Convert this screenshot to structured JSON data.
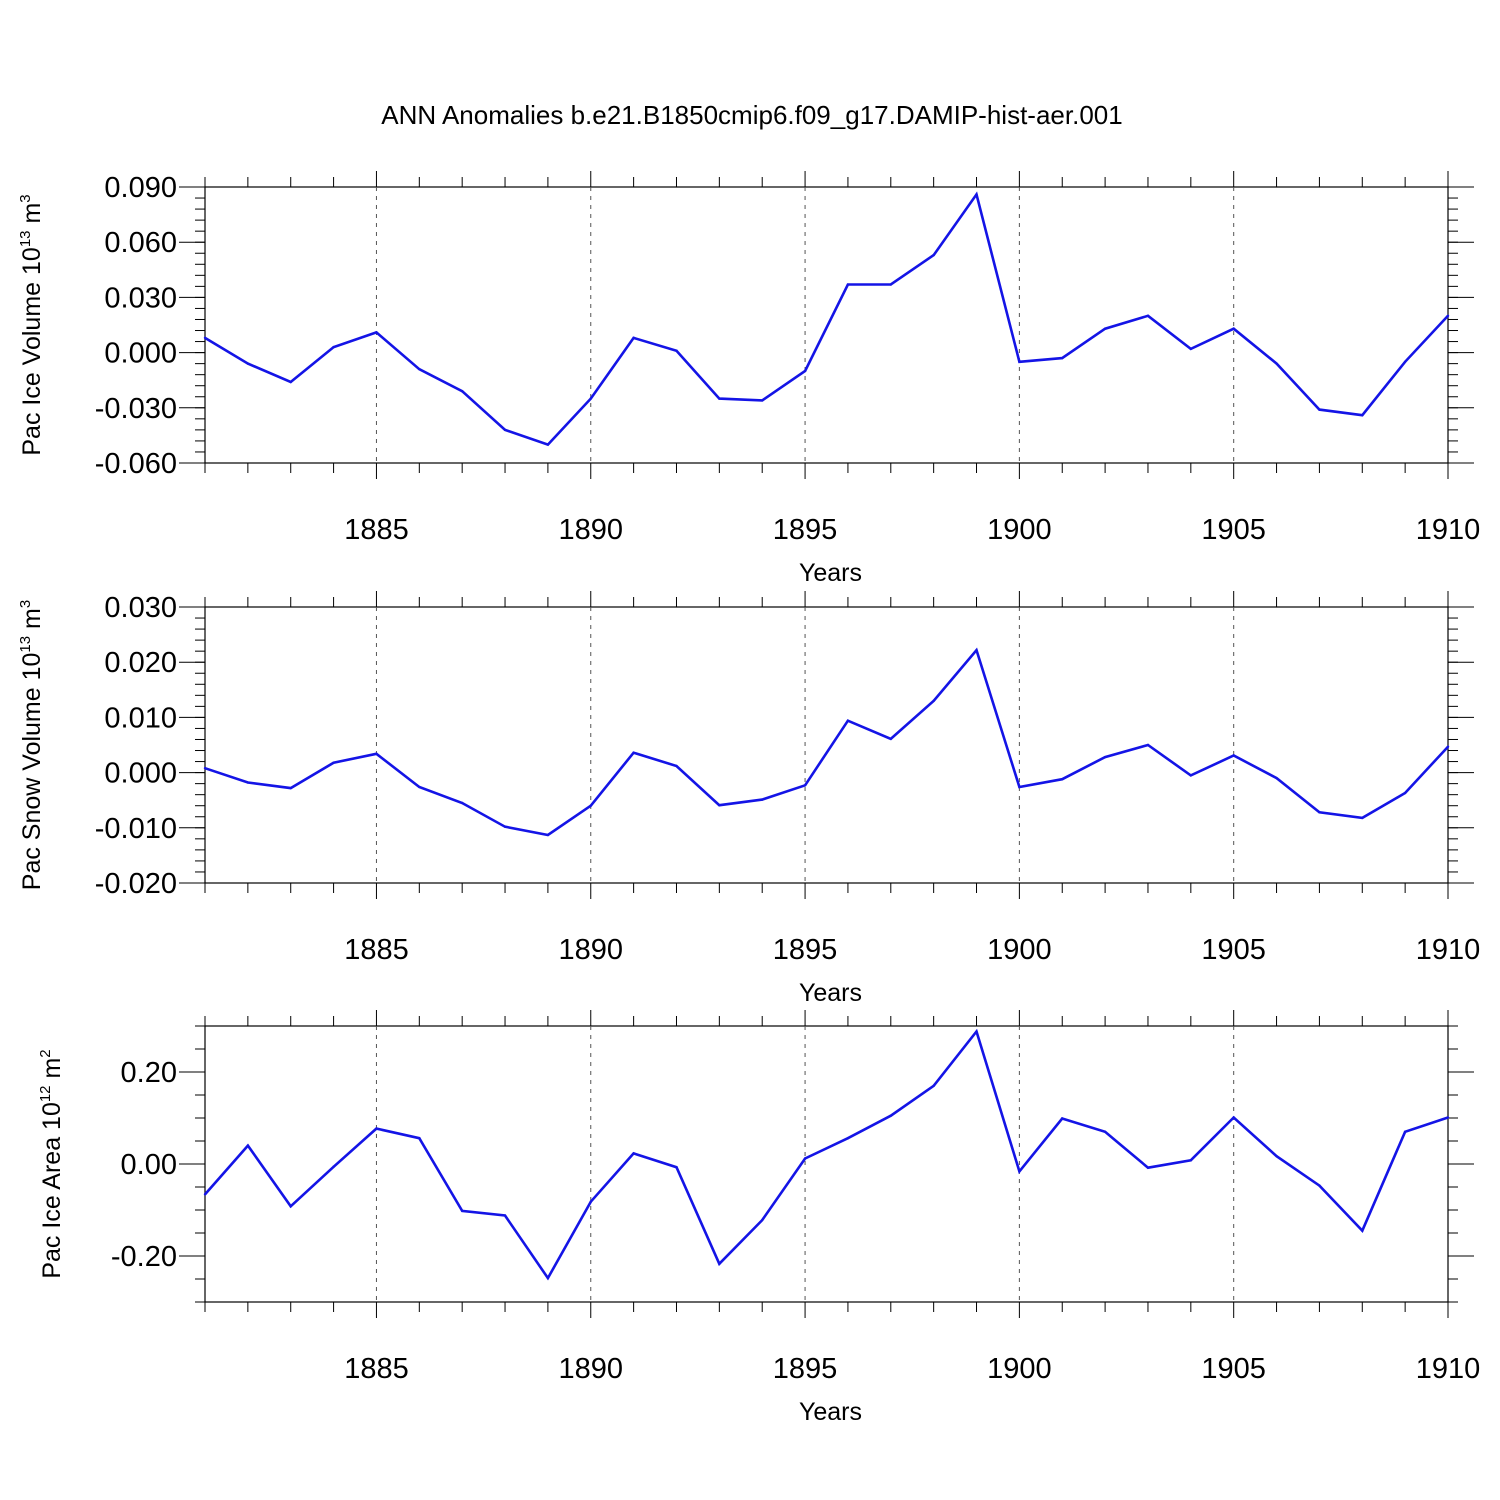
{
  "title": "ANN Anomalies b.e21.B1850cmip6.f09_g17.DAMIP-hist-aer.001",
  "colors": {
    "line": "#1414e6",
    "axis": "#000000",
    "grid": "#555555"
  },
  "chart_data": [
    {
      "type": "line",
      "ylabel": {
        "main": "Pac Ice Volume 10",
        "exp": "13",
        "unit": " m",
        "unit_exp": "3"
      },
      "xlabel": "Years",
      "x": [
        1881,
        1882,
        1883,
        1884,
        1885,
        1886,
        1887,
        1888,
        1889,
        1890,
        1891,
        1892,
        1893,
        1894,
        1895,
        1896,
        1897,
        1898,
        1899,
        1900,
        1901,
        1902,
        1903,
        1904,
        1905,
        1906,
        1907,
        1908,
        1909,
        1910
      ],
      "values": [
        0.008,
        -0.006,
        -0.016,
        0.003,
        0.011,
        -0.009,
        -0.021,
        -0.042,
        -0.05,
        -0.025,
        0.008,
        0.001,
        -0.025,
        -0.026,
        -0.01,
        0.037,
        0.037,
        0.053,
        0.086,
        -0.005,
        -0.003,
        0.013,
        0.02,
        0.002,
        0.013,
        -0.006,
        -0.031,
        -0.034,
        -0.005,
        0.02
      ],
      "xlim": [
        1881,
        1910
      ],
      "ylim": [
        -0.06,
        0.09
      ],
      "yticks": [
        -0.06,
        -0.03,
        0.0,
        0.03,
        0.06,
        0.09
      ],
      "yticklabels": [
        "-0.060",
        "-0.030",
        "0.000",
        "0.030",
        "0.060",
        "0.090"
      ],
      "yminor": 0.006,
      "xticks": [
        1885,
        1890,
        1895,
        1900,
        1905,
        1910
      ],
      "xticklabels": [
        "1885",
        "1890",
        "1895",
        "1900",
        "1905",
        "1910"
      ]
    },
    {
      "type": "line",
      "ylabel": {
        "main": "Pac Snow Volume 10",
        "exp": "13",
        "unit": " m",
        "unit_exp": "3"
      },
      "xlabel": "Years",
      "x": [
        1881,
        1882,
        1883,
        1884,
        1885,
        1886,
        1887,
        1888,
        1889,
        1890,
        1891,
        1892,
        1893,
        1894,
        1895,
        1896,
        1897,
        1898,
        1899,
        1900,
        1901,
        1902,
        1903,
        1904,
        1905,
        1906,
        1907,
        1908,
        1909,
        1910
      ],
      "values": [
        0.0008,
        -0.0018,
        -0.0028,
        0.0018,
        0.0034,
        -0.0026,
        -0.0055,
        -0.0098,
        -0.0113,
        -0.006,
        0.0036,
        0.0012,
        -0.0059,
        -0.0049,
        -0.0023,
        0.0094,
        0.0061,
        0.013,
        0.0222,
        -0.0026,
        -0.0012,
        0.0028,
        0.005,
        -0.0005,
        0.0031,
        -0.001,
        -0.0072,
        -0.0082,
        -0.0037,
        0.0047
      ],
      "xlim": [
        1881,
        1910
      ],
      "ylim": [
        -0.02,
        0.03
      ],
      "yticks": [
        -0.02,
        -0.01,
        0.0,
        0.01,
        0.02,
        0.03
      ],
      "yticklabels": [
        "-0.020",
        "-0.010",
        "0.000",
        "0.010",
        "0.020",
        "0.030"
      ],
      "yminor": 0.002,
      "xticks": [
        1885,
        1890,
        1895,
        1900,
        1905,
        1910
      ],
      "xticklabels": [
        "1885",
        "1890",
        "1895",
        "1900",
        "1905",
        "1910"
      ]
    },
    {
      "type": "line",
      "ylabel": {
        "main": "Pac Ice Area 10",
        "exp": "12",
        "unit": " m",
        "unit_exp": "2"
      },
      "xlabel": "Years",
      "x": [
        1881,
        1882,
        1883,
        1884,
        1885,
        1886,
        1887,
        1888,
        1889,
        1890,
        1891,
        1892,
        1893,
        1894,
        1895,
        1896,
        1897,
        1898,
        1899,
        1900,
        1901,
        1902,
        1903,
        1904,
        1905,
        1906,
        1907,
        1908,
        1909,
        1910
      ],
      "values": [
        -0.066,
        0.04,
        -0.092,
        -0.006,
        0.077,
        0.056,
        -0.102,
        -0.112,
        -0.248,
        -0.082,
        0.023,
        -0.007,
        -0.217,
        -0.122,
        0.012,
        0.056,
        0.105,
        0.17,
        0.288,
        -0.016,
        0.099,
        0.07,
        -0.008,
        0.008,
        0.101,
        0.017,
        -0.047,
        -0.145,
        0.07,
        0.101
      ],
      "xlim": [
        1881,
        1910
      ],
      "ylim": [
        -0.3,
        0.3
      ],
      "yticks": [
        -0.2,
        0.0,
        0.2
      ],
      "yticklabels": [
        "-0.20",
        "0.00",
        "0.20"
      ],
      "yminor": 0.05,
      "xticks": [
        1885,
        1890,
        1895,
        1900,
        1905,
        1910
      ],
      "xticklabels": [
        "1885",
        "1890",
        "1895",
        "1900",
        "1905",
        "1910"
      ]
    }
  ]
}
